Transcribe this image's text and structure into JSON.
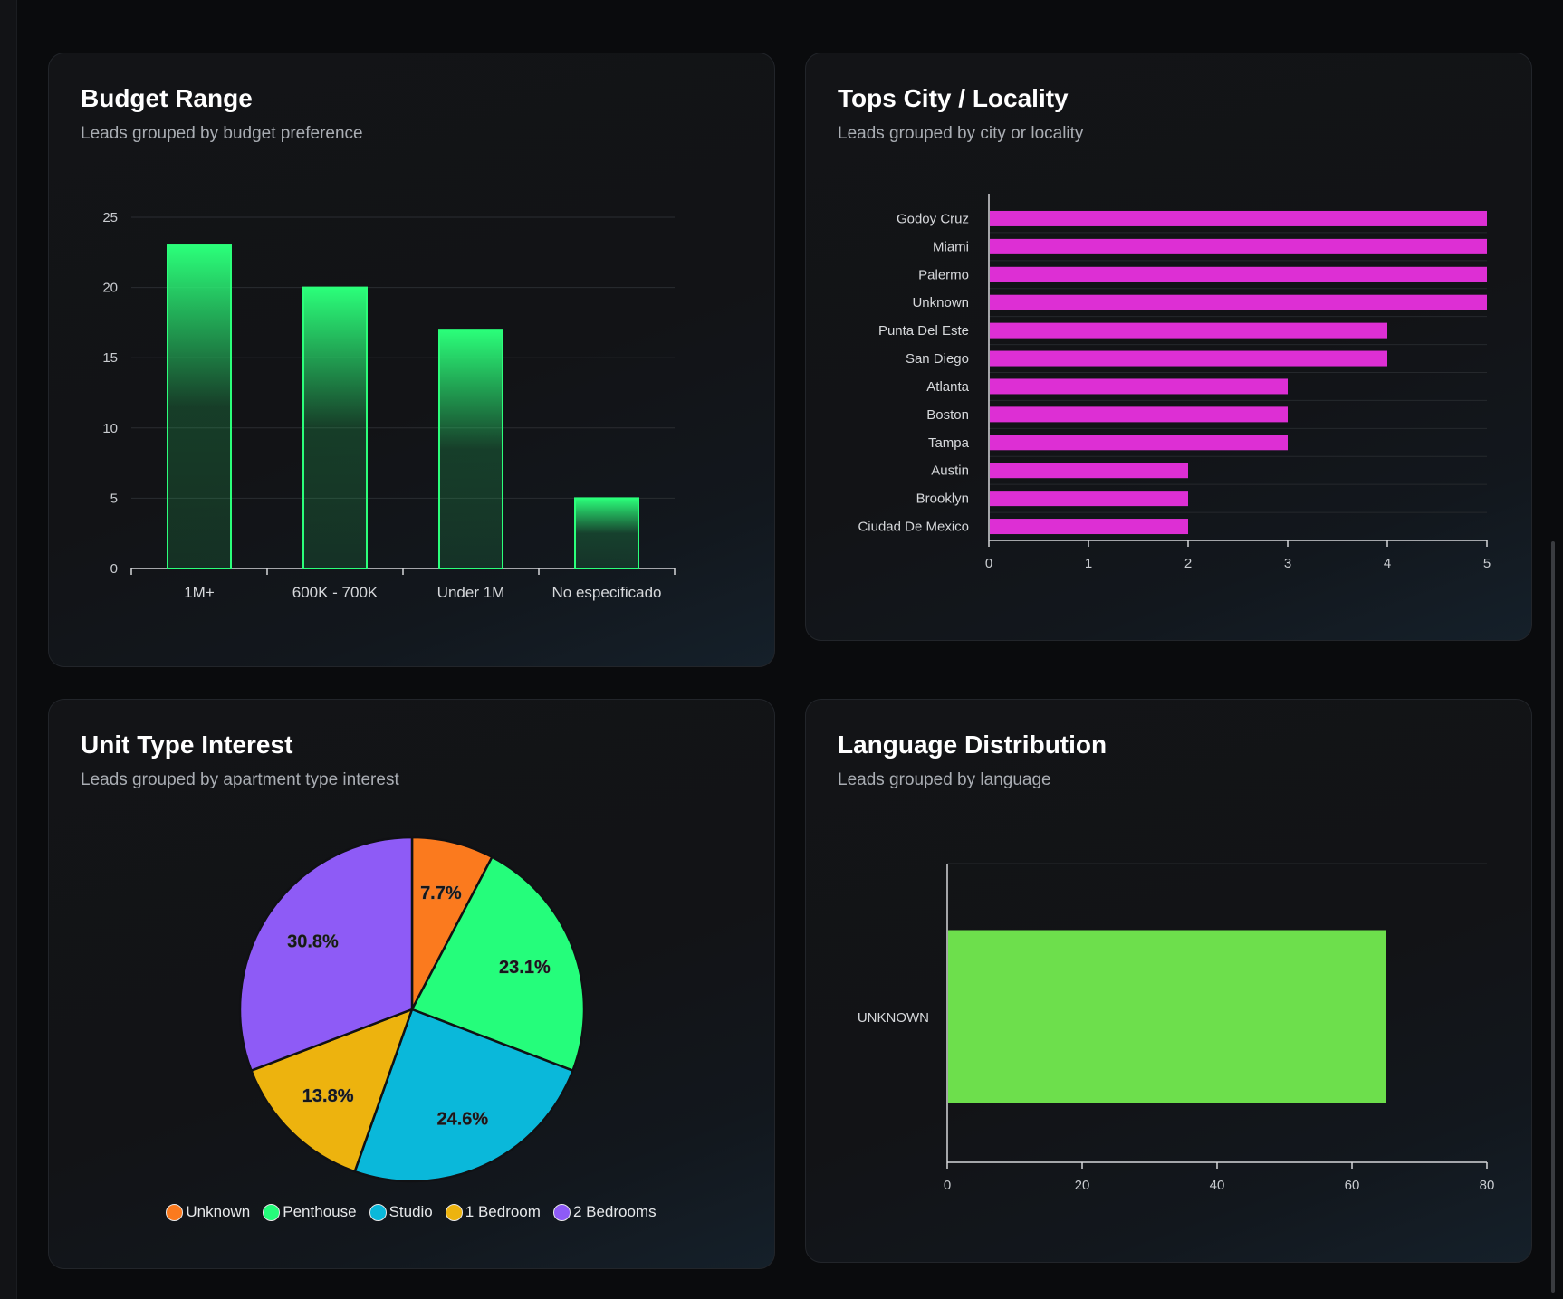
{
  "cards": {
    "budget": {
      "title": "Budget Range",
      "subtitle": "Leads grouped by budget preference"
    },
    "city": {
      "title": "Tops City / Locality",
      "subtitle": "Leads grouped by city or locality"
    },
    "unit": {
      "title": "Unit Type Interest",
      "subtitle": "Leads grouped by apartment type interest"
    },
    "language": {
      "title": "Language Distribution",
      "subtitle": "Leads grouped by language"
    }
  },
  "colors": {
    "budget_bar": "#2bff7a",
    "city_bar": "#dd2fd4",
    "language_bar": "#6ddf4c"
  },
  "chart_data": [
    {
      "id": "budget",
      "type": "bar",
      "title": "Budget Range",
      "subtitle": "Leads grouped by budget preference",
      "categories": [
        "1M+",
        "600K - 700K",
        "Under 1M",
        "No especificado"
      ],
      "values": [
        23,
        20,
        17,
        5
      ],
      "ylim": [
        0,
        25
      ],
      "yticks": [
        0,
        5,
        10,
        15,
        20,
        25
      ],
      "grid": true
    },
    {
      "id": "city",
      "type": "bar",
      "orientation": "horizontal",
      "title": "Tops City / Locality",
      "subtitle": "Leads grouped by city or locality",
      "categories": [
        "Godoy Cruz",
        "Miami",
        "Palermo",
        "Unknown",
        "Punta Del Este",
        "San Diego",
        "Atlanta",
        "Boston",
        "Tampa",
        "Austin",
        "Brooklyn",
        "Ciudad De Mexico"
      ],
      "values": [
        5,
        5,
        5,
        5,
        4,
        4,
        3,
        3,
        3,
        2,
        2,
        2
      ],
      "xlim": [
        0,
        5
      ],
      "xticks": [
        0,
        1,
        2,
        3,
        4,
        5
      ],
      "grid": true
    },
    {
      "id": "unit",
      "type": "pie",
      "title": "Unit Type Interest",
      "subtitle": "Leads grouped by apartment type interest",
      "labels": [
        "Unknown",
        "Penthouse",
        "Studio",
        "1 Bedroom",
        "2 Bedrooms"
      ],
      "values": [
        7.7,
        23.1,
        24.6,
        13.8,
        30.8
      ],
      "value_labels": [
        "7.7%",
        "23.1%",
        "24.6%",
        "13.8%",
        "30.8%"
      ],
      "colors": [
        "#fb7a1e",
        "#25fd7b",
        "#0ab8da",
        "#edb30e",
        "#8e5bf6"
      ],
      "legend": "bottom"
    },
    {
      "id": "language",
      "type": "bar",
      "orientation": "horizontal",
      "title": "Language Distribution",
      "subtitle": "Leads grouped by language",
      "categories": [
        "UNKNOWN"
      ],
      "values": [
        65
      ],
      "xlim": [
        0,
        80
      ],
      "xticks": [
        0,
        20,
        40,
        60,
        80
      ],
      "grid": true
    }
  ]
}
